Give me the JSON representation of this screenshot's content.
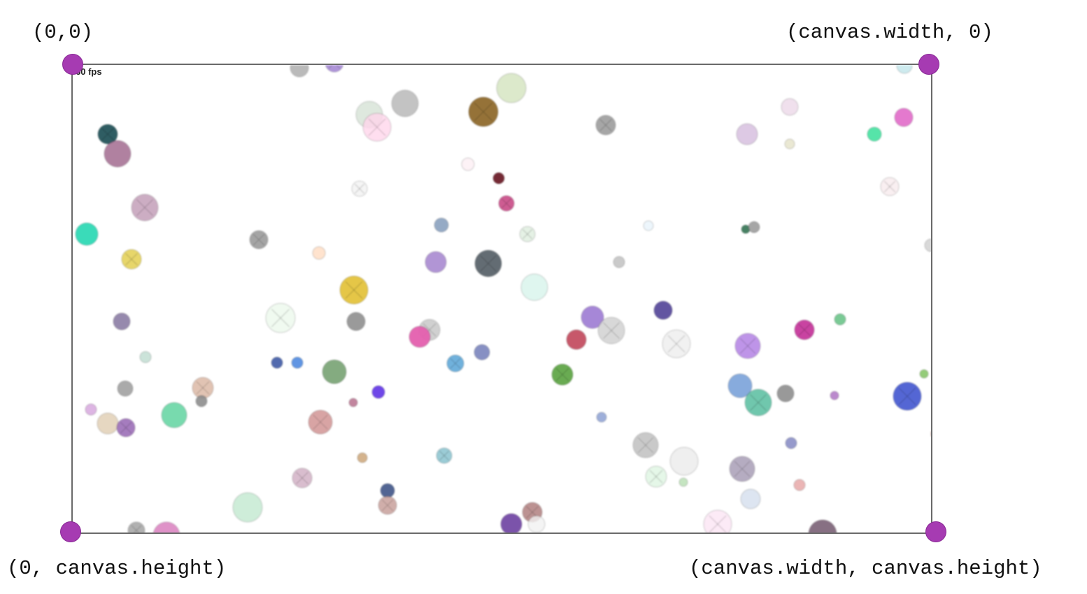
{
  "labels": {
    "top_left": "(0,0)",
    "top_right": "(canvas.width, 0)",
    "bottom_left": "(0, canvas.height)",
    "bottom_right": "(canvas.width, canvas.height)"
  },
  "canvas": {
    "fps_text": "60 fps",
    "frame_color": "#6a6a6a",
    "corner_marker_color": "#a63bb2"
  }
}
